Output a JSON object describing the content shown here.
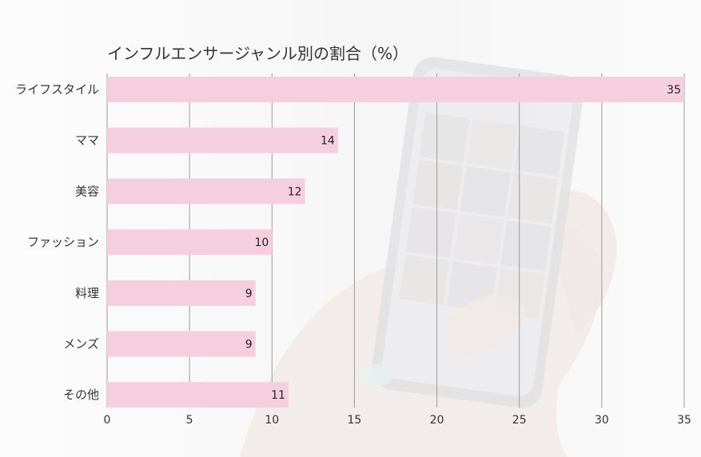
{
  "chart_data": {
    "type": "bar",
    "orientation": "horizontal",
    "title": "インフルエンサージャンル別の割合（%）",
    "categories": [
      "ライフスタイル",
      "ママ",
      "美容",
      "ファッション",
      "料理",
      "メンズ",
      "その他"
    ],
    "values": [
      35,
      14,
      12,
      10,
      9,
      9,
      11
    ],
    "xticks": [
      0,
      5,
      10,
      15,
      20,
      25,
      30,
      35
    ],
    "xlim": [
      0,
      35
    ],
    "grid": true,
    "legend": "none",
    "bar_color": "#f5cfdd"
  }
}
